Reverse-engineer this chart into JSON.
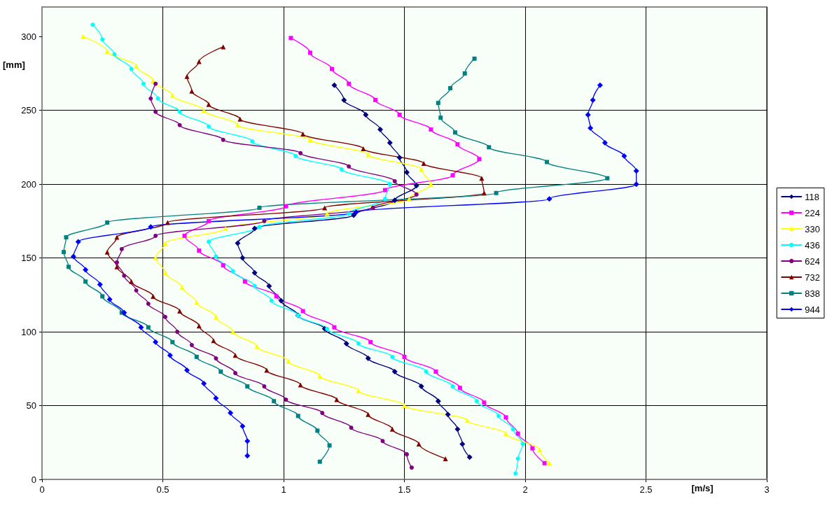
{
  "chart_data": {
    "type": "line",
    "xlabel": "[m/s]",
    "ylabel": "[mm]",
    "xlim": [
      0,
      3
    ],
    "xticks": [
      0,
      0.5,
      1,
      1.5,
      2,
      2.5,
      3
    ],
    "ylim": [
      0,
      320
    ],
    "yticks": [
      0,
      50,
      100,
      150,
      200,
      250,
      300
    ],
    "grid": true,
    "legend": "right",
    "line_style": "solid",
    "series": [
      {
        "name": "118",
        "color": "#000080",
        "marker": "diamond",
        "x": [
          1.21,
          1.25,
          1.34,
          1.4,
          1.44,
          1.48,
          1.51,
          1.55,
          1.46,
          1.29,
          0.88,
          0.81,
          0.83,
          0.88,
          0.94,
          0.99,
          1.06,
          1.17,
          1.26,
          1.35,
          1.46,
          1.57,
          1.64,
          1.68,
          1.72,
          1.74,
          1.77
        ],
        "values": [
          267,
          257,
          247,
          237,
          228,
          218,
          208,
          199,
          189,
          179,
          170,
          160,
          150,
          140,
          131,
          121,
          111,
          102,
          92,
          82,
          73,
          63,
          53,
          44,
          34,
          24,
          15
        ]
      },
      {
        "name": "224",
        "color": "#ff00ff",
        "marker": "square",
        "x": [
          1.03,
          1.11,
          1.2,
          1.27,
          1.38,
          1.48,
          1.61,
          1.72,
          1.81,
          1.7,
          1.42,
          1.01,
          0.69,
          0.59,
          0.65,
          0.75,
          0.84,
          0.97,
          1.08,
          1.21,
          1.36,
          1.5,
          1.63,
          1.73,
          1.83,
          1.92,
          1.97,
          2.03,
          2.08
        ],
        "values": [
          299,
          289,
          278,
          268,
          257,
          247,
          237,
          227,
          217,
          206,
          196,
          185,
          175,
          165,
          155,
          145,
          134,
          124,
          114,
          103,
          93,
          83,
          73,
          62,
          52,
          42,
          31,
          21,
          11
        ]
      },
      {
        "name": "330",
        "color": "#ffff00",
        "marker": "triangle",
        "x": [
          0.17,
          0.27,
          0.39,
          0.46,
          0.54,
          0.67,
          0.81,
          1.11,
          1.35,
          1.57,
          1.61,
          1.52,
          1.18,
          0.76,
          0.51,
          0.47,
          0.51,
          0.58,
          0.64,
          0.72,
          0.79,
          0.89,
          1.02,
          1.15,
          1.31,
          1.5,
          1.76,
          1.92,
          2.06,
          2.1
        ],
        "values": [
          300,
          290,
          280,
          270,
          260,
          250,
          240,
          230,
          220,
          210,
          200,
          190,
          180,
          170,
          160,
          150,
          140,
          130,
          120,
          110,
          100,
          90,
          80,
          70,
          60,
          50,
          40,
          31,
          20,
          11
        ]
      },
      {
        "name": "436",
        "color": "#00ffff",
        "marker": "circle",
        "x": [
          0.21,
          0.25,
          0.3,
          0.37,
          0.42,
          0.48,
          0.57,
          0.69,
          0.87,
          1.05,
          1.24,
          1.44,
          1.42,
          1.27,
          0.9,
          0.69,
          0.72,
          0.79,
          0.88,
          0.95,
          1.06,
          1.18,
          1.31,
          1.45,
          1.59,
          1.7,
          1.8,
          1.89,
          1.95,
          1.99,
          1.97,
          1.96
        ],
        "values": [
          308,
          298,
          288,
          278,
          268,
          258,
          249,
          239,
          229,
          219,
          210,
          200,
          190,
          180,
          171,
          161,
          151,
          141,
          131,
          121,
          111,
          102,
          92,
          83,
          73,
          63,
          53,
          43,
          34,
          24,
          14,
          4
        ]
      },
      {
        "name": "624",
        "color": "#800080",
        "marker": "circle",
        "x": [
          0.47,
          0.45,
          0.47,
          0.57,
          0.75,
          1.07,
          1.27,
          1.46,
          1.55,
          1.37,
          0.92,
          0.47,
          0.33,
          0.31,
          0.34,
          0.39,
          0.44,
          0.51,
          0.56,
          0.62,
          0.72,
          0.8,
          0.92,
          1.01,
          1.16,
          1.28,
          1.41,
          1.51,
          1.53
        ],
        "values": [
          268,
          258,
          249,
          240,
          230,
          221,
          212,
          202,
          193,
          184,
          175,
          165,
          156,
          147,
          138,
          128,
          119,
          110,
          100,
          91,
          82,
          72,
          63,
          54,
          45,
          35,
          26,
          17,
          8
        ]
      },
      {
        "name": "732",
        "color": "#800000",
        "marker": "triangle",
        "x": [
          0.75,
          0.65,
          0.6,
          0.62,
          0.69,
          0.82,
          1.08,
          1.33,
          1.58,
          1.82,
          1.83,
          1.17,
          0.52,
          0.31,
          0.27,
          0.31,
          0.37,
          0.46,
          0.57,
          0.65,
          0.71,
          0.8,
          0.93,
          1.07,
          1.22,
          1.35,
          1.45,
          1.56,
          1.67
        ],
        "values": [
          293,
          283,
          273,
          263,
          254,
          244,
          234,
          224,
          214,
          204,
          194,
          184,
          174,
          164,
          154,
          144,
          134,
          124,
          114,
          104,
          94,
          84,
          74,
          64,
          54,
          44,
          34,
          24,
          14
        ]
      },
      {
        "name": "838",
        "color": "#008080",
        "marker": "square",
        "x": [
          1.79,
          1.75,
          1.69,
          1.64,
          1.65,
          1.71,
          1.85,
          2.09,
          2.34,
          1.88,
          0.9,
          0.27,
          0.1,
          0.09,
          0.11,
          0.18,
          0.25,
          0.33,
          0.44,
          0.54,
          0.64,
          0.74,
          0.85,
          0.96,
          1.06,
          1.14,
          1.19,
          1.15
        ],
        "values": [
          285,
          275,
          265,
          255,
          245,
          235,
          225,
          215,
          204,
          194,
          184,
          174,
          164,
          154,
          144,
          134,
          124,
          113,
          103,
          93,
          83,
          73,
          63,
          53,
          43,
          33,
          23,
          12
        ]
      },
      {
        "name": "944",
        "color": "#0000ff",
        "marker": "diamond",
        "x": [
          2.31,
          2.28,
          2.26,
          2.27,
          2.33,
          2.41,
          2.46,
          2.46,
          2.1,
          1.3,
          0.45,
          0.15,
          0.13,
          0.18,
          0.24,
          0.28,
          0.34,
          0.41,
          0.47,
          0.53,
          0.6,
          0.67,
          0.72,
          0.78,
          0.83,
          0.85,
          0.85
        ],
        "values": [
          267,
          257,
          247,
          238,
          228,
          219,
          209,
          200,
          190,
          181,
          171,
          161,
          151,
          142,
          132,
          122,
          113,
          103,
          93,
          84,
          74,
          65,
          55,
          45,
          36,
          26,
          16
        ]
      }
    ]
  }
}
